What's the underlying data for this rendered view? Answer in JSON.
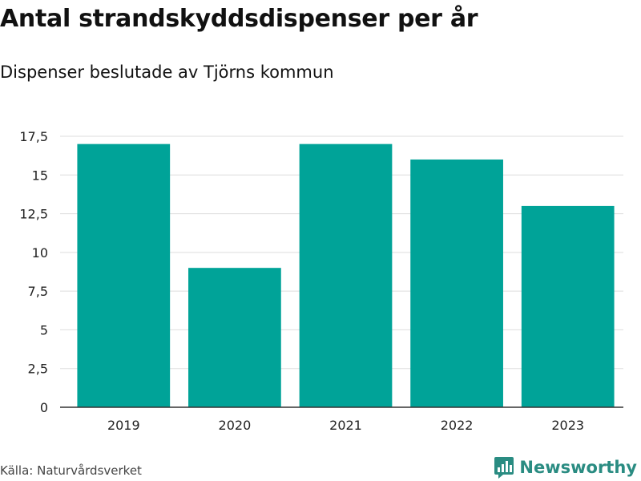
{
  "chart_data": {
    "type": "bar",
    "title": "Antal strandskyddsdispenser per år",
    "subtitle": "Dispenser beslutade av Tjörns kommun",
    "categories": [
      "2019",
      "2020",
      "2021",
      "2022",
      "2023"
    ],
    "values": [
      17,
      9,
      17,
      16,
      13
    ],
    "yticks": [
      0,
      2.5,
      5,
      7.5,
      10,
      12.5,
      15,
      17.5
    ],
    "ytick_labels": [
      "0",
      "2,5",
      "5",
      "7,5",
      "10",
      "12,5",
      "15",
      "17,5"
    ],
    "ylim": [
      0,
      17.5
    ],
    "xlabel": "",
    "ylabel": "",
    "grid": true,
    "bar_color": "#00a398"
  },
  "footer": {
    "source": "Källa: Naturvårdsverket",
    "brand": "Newsworthy"
  },
  "colors": {
    "bar": "#00a398",
    "grid": "#dddddd",
    "axis": "#333333",
    "brand": "#2a8c82"
  },
  "icons": {
    "brand": "newsworthy-logo-icon"
  }
}
